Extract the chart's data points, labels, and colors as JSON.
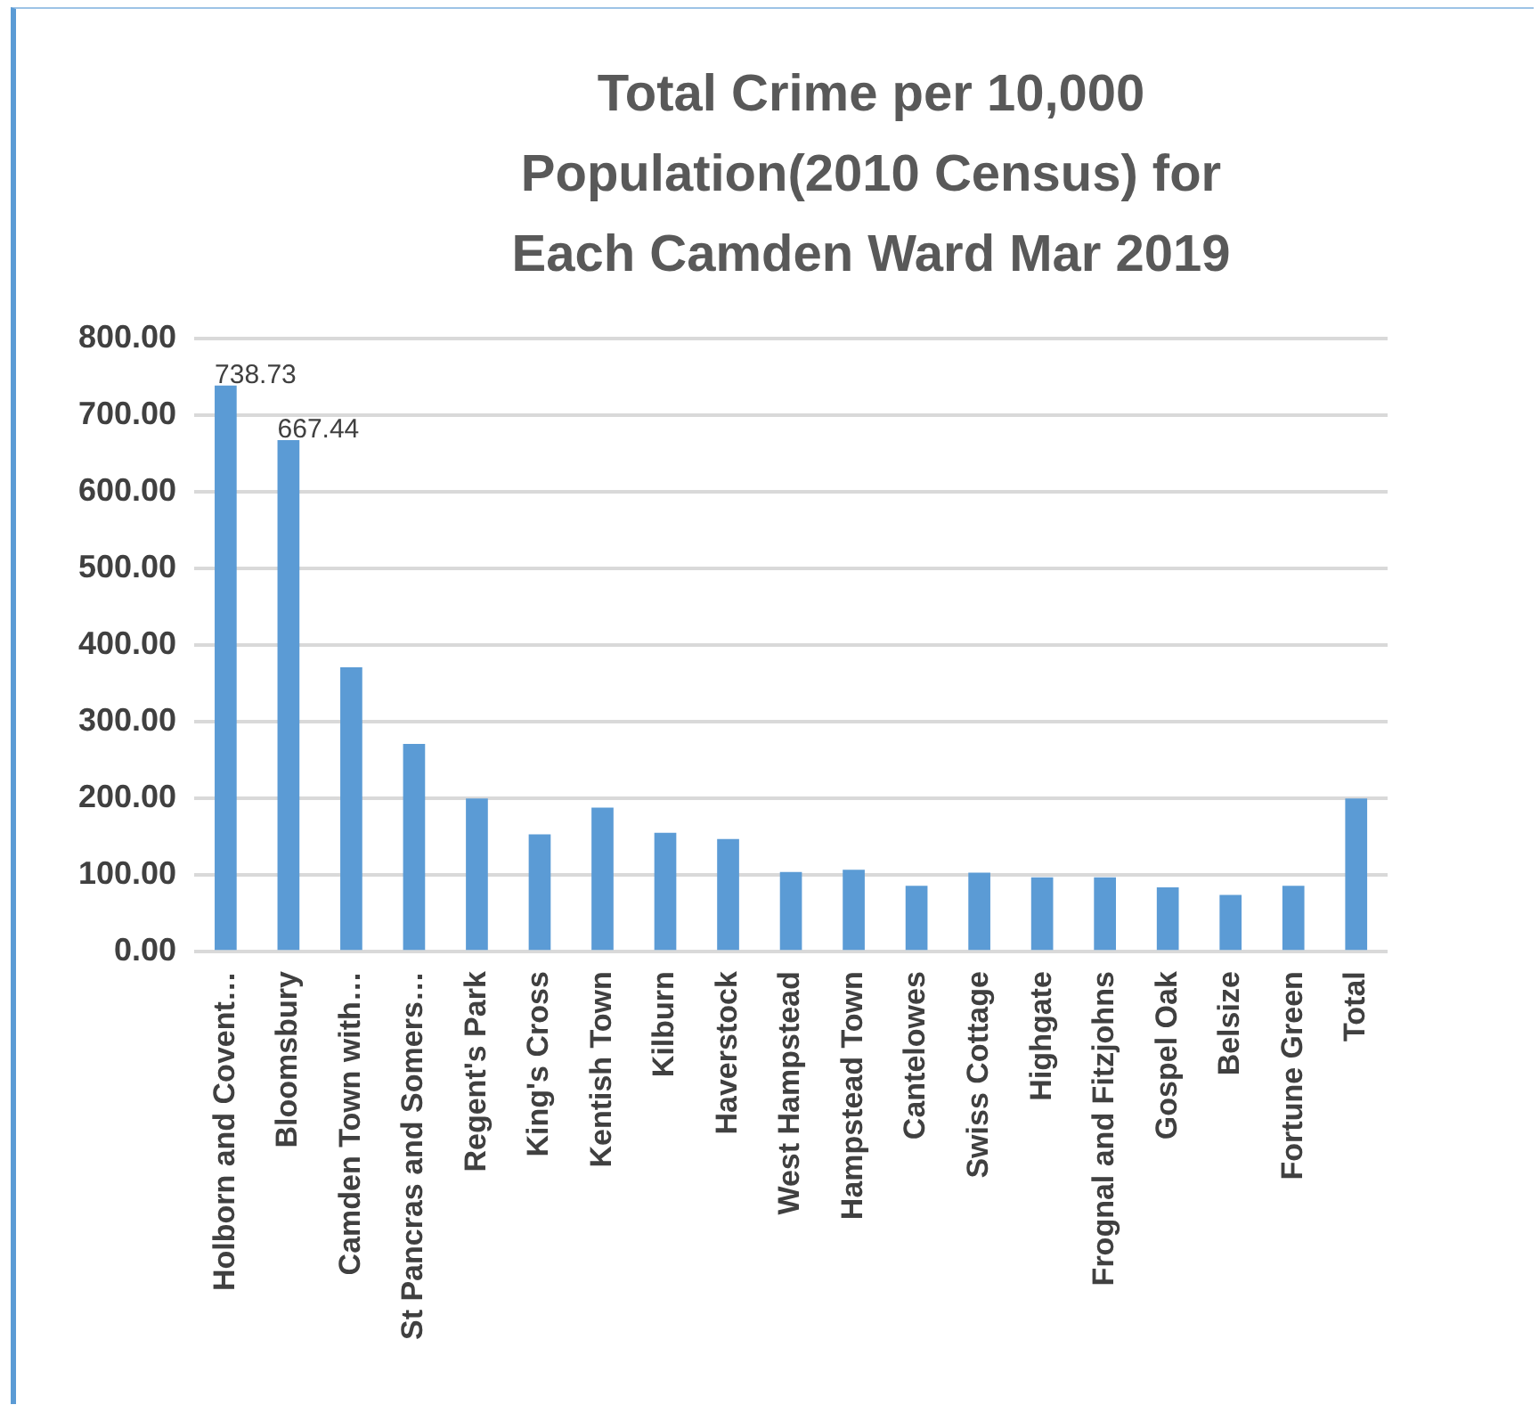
{
  "chart_data": {
    "type": "bar",
    "title": "Total Crime per 10,000 Population(2010 Census) for Each Camden Ward Mar 2019",
    "categories": [
      "Holborn and Covent…",
      "Bloomsbury",
      "Camden Town with…",
      "St Pancras and Somers…",
      "Regent's Park",
      "King's Cross",
      "Kentish Town",
      "Kilburn",
      "Haverstock",
      "West Hampstead",
      "Hampstead Town",
      "Cantelowes",
      "Swiss Cottage",
      "Highgate",
      "Frognal and Fitzjohns",
      "Gospel Oak",
      "Belsize",
      "Fortune Green",
      "Total"
    ],
    "values": [
      738.73,
      667.44,
      371,
      271,
      200,
      153,
      188,
      155,
      147,
      104,
      107,
      86,
      103,
      97,
      97,
      84,
      74,
      86,
      200
    ],
    "value_labels": [
      "738.73",
      "667.44",
      null,
      null,
      null,
      null,
      null,
      null,
      null,
      null,
      null,
      null,
      null,
      null,
      null,
      null,
      null,
      null,
      null
    ],
    "color": "#5b9bd5",
    "ylim": [
      0,
      800
    ],
    "yticks": [
      {
        "value": 0,
        "label": "0.00"
      },
      {
        "value": 100,
        "label": "100.00"
      },
      {
        "value": 200,
        "label": "200.00"
      },
      {
        "value": 300,
        "label": "300.00"
      },
      {
        "value": 400,
        "label": "400.00"
      },
      {
        "value": 500,
        "label": "500.00"
      },
      {
        "value": 600,
        "label": "600.00"
      },
      {
        "value": 700,
        "label": "700.00"
      },
      {
        "value": 800,
        "label": "800.00"
      }
    ],
    "grid": "y"
  }
}
